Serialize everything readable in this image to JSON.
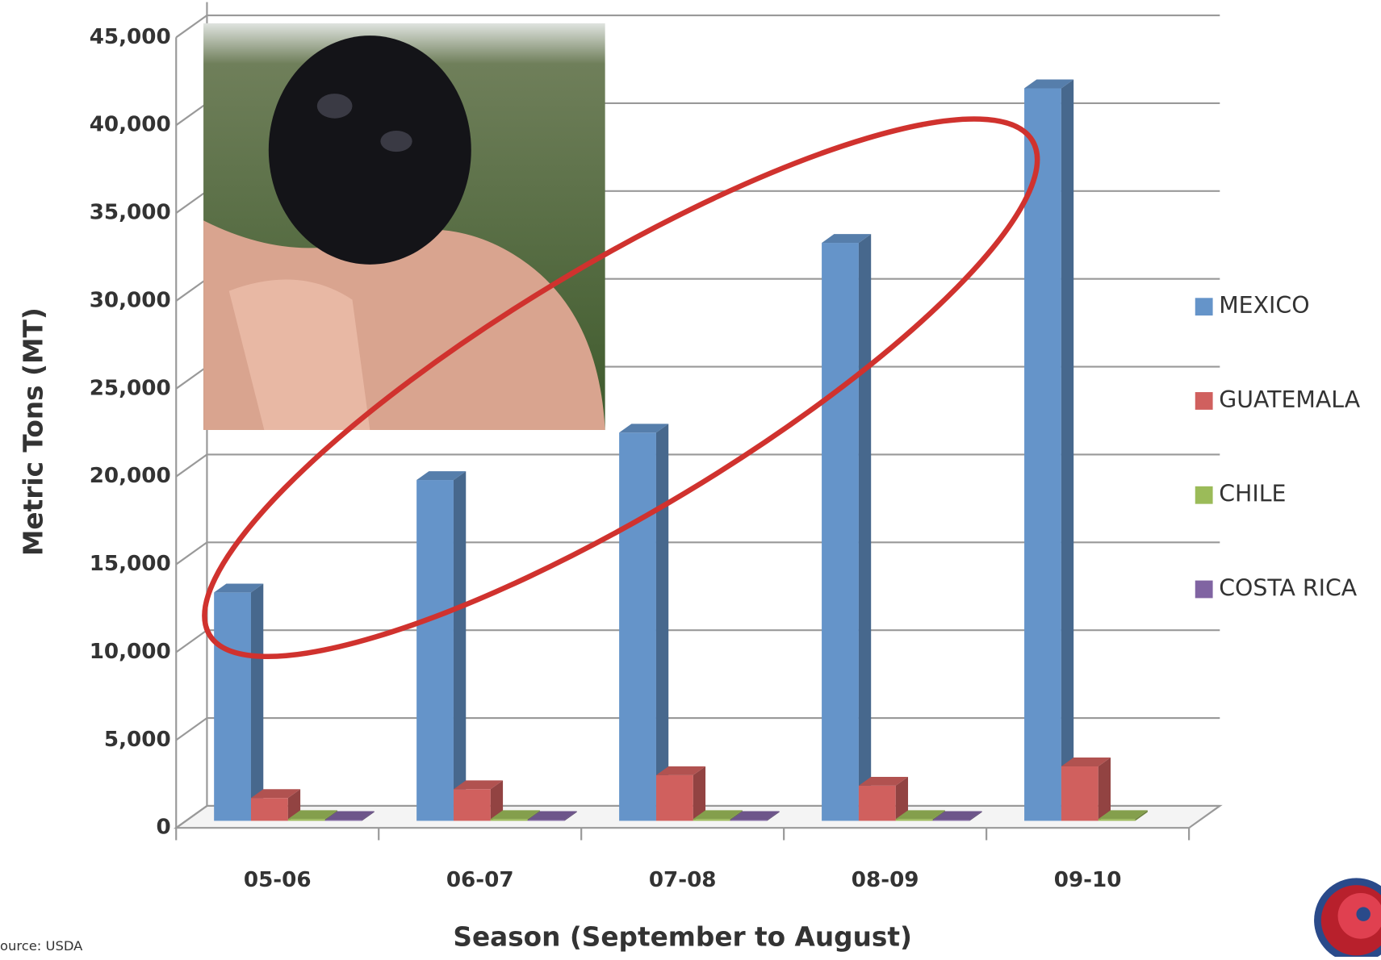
{
  "chart_data": {
    "type": "bar3d",
    "y_label": "Metric Tons (MT)",
    "x_label": "Season (September to August)",
    "source": "ource:  USDA",
    "categories": [
      "05-06",
      "06-07",
      "07-08",
      "08-09",
      "09-10"
    ],
    "series": [
      {
        "name": "MEXICO",
        "color": "#6594c9",
        "values": [
          13000,
          19400,
          22100,
          32900,
          41700
        ]
      },
      {
        "name": "GUATEMALA",
        "color": "#d0605e",
        "values": [
          1300,
          1800,
          2600,
          2000,
          3100
        ]
      },
      {
        "name": "CHILE",
        "color": "#9bbb59",
        "values": [
          100,
          100,
          100,
          100,
          100
        ]
      },
      {
        "name": "COSTA RICA",
        "color": "#8064a2",
        "values": [
          50,
          50,
          50,
          50,
          null
        ]
      }
    ],
    "ylim": [
      0,
      45000
    ],
    "yticks": [
      0,
      {
        "value": 5000,
        "label": "5,000"
      },
      {
        "value": 10000,
        "label": "10,000"
      },
      {
        "value": 15000,
        "label": "15,000"
      },
      {
        "value": 20000,
        "label": "20,000"
      },
      {
        "value": 25000,
        "label": "25,000"
      },
      {
        "value": 30000,
        "label": "30,000"
      },
      {
        "value": 35000,
        "label": "35,000"
      },
      {
        "value": 40000,
        "label": "40,000"
      },
      {
        "value": 45000,
        "label": "45,000"
      }
    ],
    "grid": true,
    "legend": "right"
  }
}
